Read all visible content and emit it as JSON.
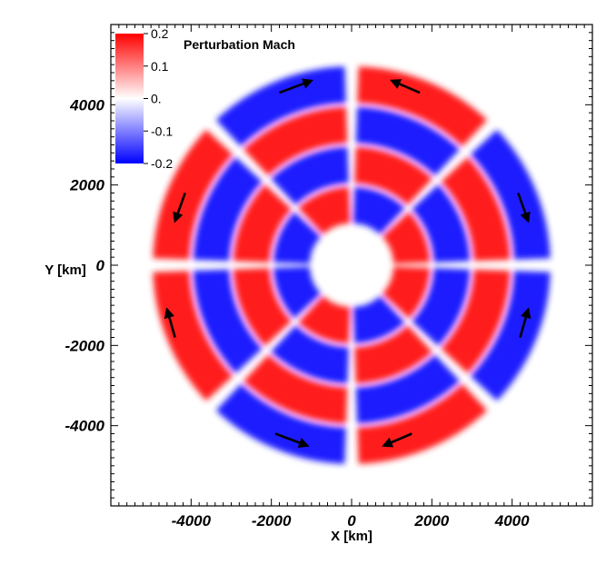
{
  "chart_data": {
    "type": "heatmap",
    "title": "",
    "xlabel": "X [km]",
    "ylabel": "Y [km]",
    "xlim": [
      -6000,
      6000
    ],
    "ylim": [
      -6000,
      6000
    ],
    "xticks": [
      -4000,
      -2000,
      0,
      2000,
      4000
    ],
    "yticks": [
      -4000,
      -2000,
      0,
      2000,
      4000
    ],
    "xtick_labels": [
      "-4000",
      "-2000",
      "0",
      "2000",
      "4000"
    ],
    "ytick_labels": [
      "4000",
      "2000",
      "0",
      "-2000",
      "-4000"
    ],
    "grid": false,
    "colorbar": {
      "title": "Perturbation Mach",
      "placement": "top-left",
      "min": -0.2,
      "max": 0.2,
      "ticks": [
        0.2,
        0.1,
        0.0,
        -0.1,
        -0.2
      ],
      "tick_labels": [
        "0.2",
        "0.1",
        "0.",
        "-0.1",
        "-0.2"
      ],
      "colors": {
        "high": "#ff0000",
        "mid": "#ffffff",
        "low": "#0000ff"
      }
    },
    "field": {
      "inner_radius_km": 1000,
      "outer_radius_km": 5000,
      "rings": [
        {
          "r_inner": 1000,
          "r_outer": 2000,
          "pattern": [
            0.18,
            -0.18,
            0.18,
            -0.18,
            -0.18,
            0.18,
            -0.18,
            0.18
          ]
        },
        {
          "r_inner": 2000,
          "r_outer": 3000,
          "pattern": [
            -0.18,
            0.18,
            -0.18,
            0.18,
            0.18,
            -0.18,
            0.18,
            -0.18
          ]
        },
        {
          "r_inner": 3000,
          "r_outer": 4000,
          "pattern": [
            0.18,
            -0.18,
            0.18,
            -0.18,
            -0.18,
            0.18,
            -0.18,
            0.18
          ]
        },
        {
          "r_inner": 4000,
          "r_outer": 5000,
          "pattern": [
            -0.18,
            0.18,
            -0.18,
            0.18,
            0.18,
            -0.18,
            0.18,
            -0.18
          ]
        }
      ]
    },
    "arrows": [
      {
        "x1": -1800,
        "y1": 4300,
        "x2": -1000,
        "y2": 4600
      },
      {
        "x1": 1700,
        "y1": 4300,
        "x2": 1000,
        "y2": 4600
      },
      {
        "x1": -4150,
        "y1": 1800,
        "x2": -4400,
        "y2": 1100
      },
      {
        "x1": 4150,
        "y1": 1800,
        "x2": 4400,
        "y2": 1100
      },
      {
        "x1": -4400,
        "y1": -1800,
        "x2": -4600,
        "y2": -1100
      },
      {
        "x1": 4200,
        "y1": -1800,
        "x2": 4400,
        "y2": -1100
      },
      {
        "x1": -1900,
        "y1": -4200,
        "x2": -1100,
        "y2": -4500
      },
      {
        "x1": 1500,
        "y1": -4200,
        "x2": 800,
        "y2": -4500
      }
    ]
  }
}
